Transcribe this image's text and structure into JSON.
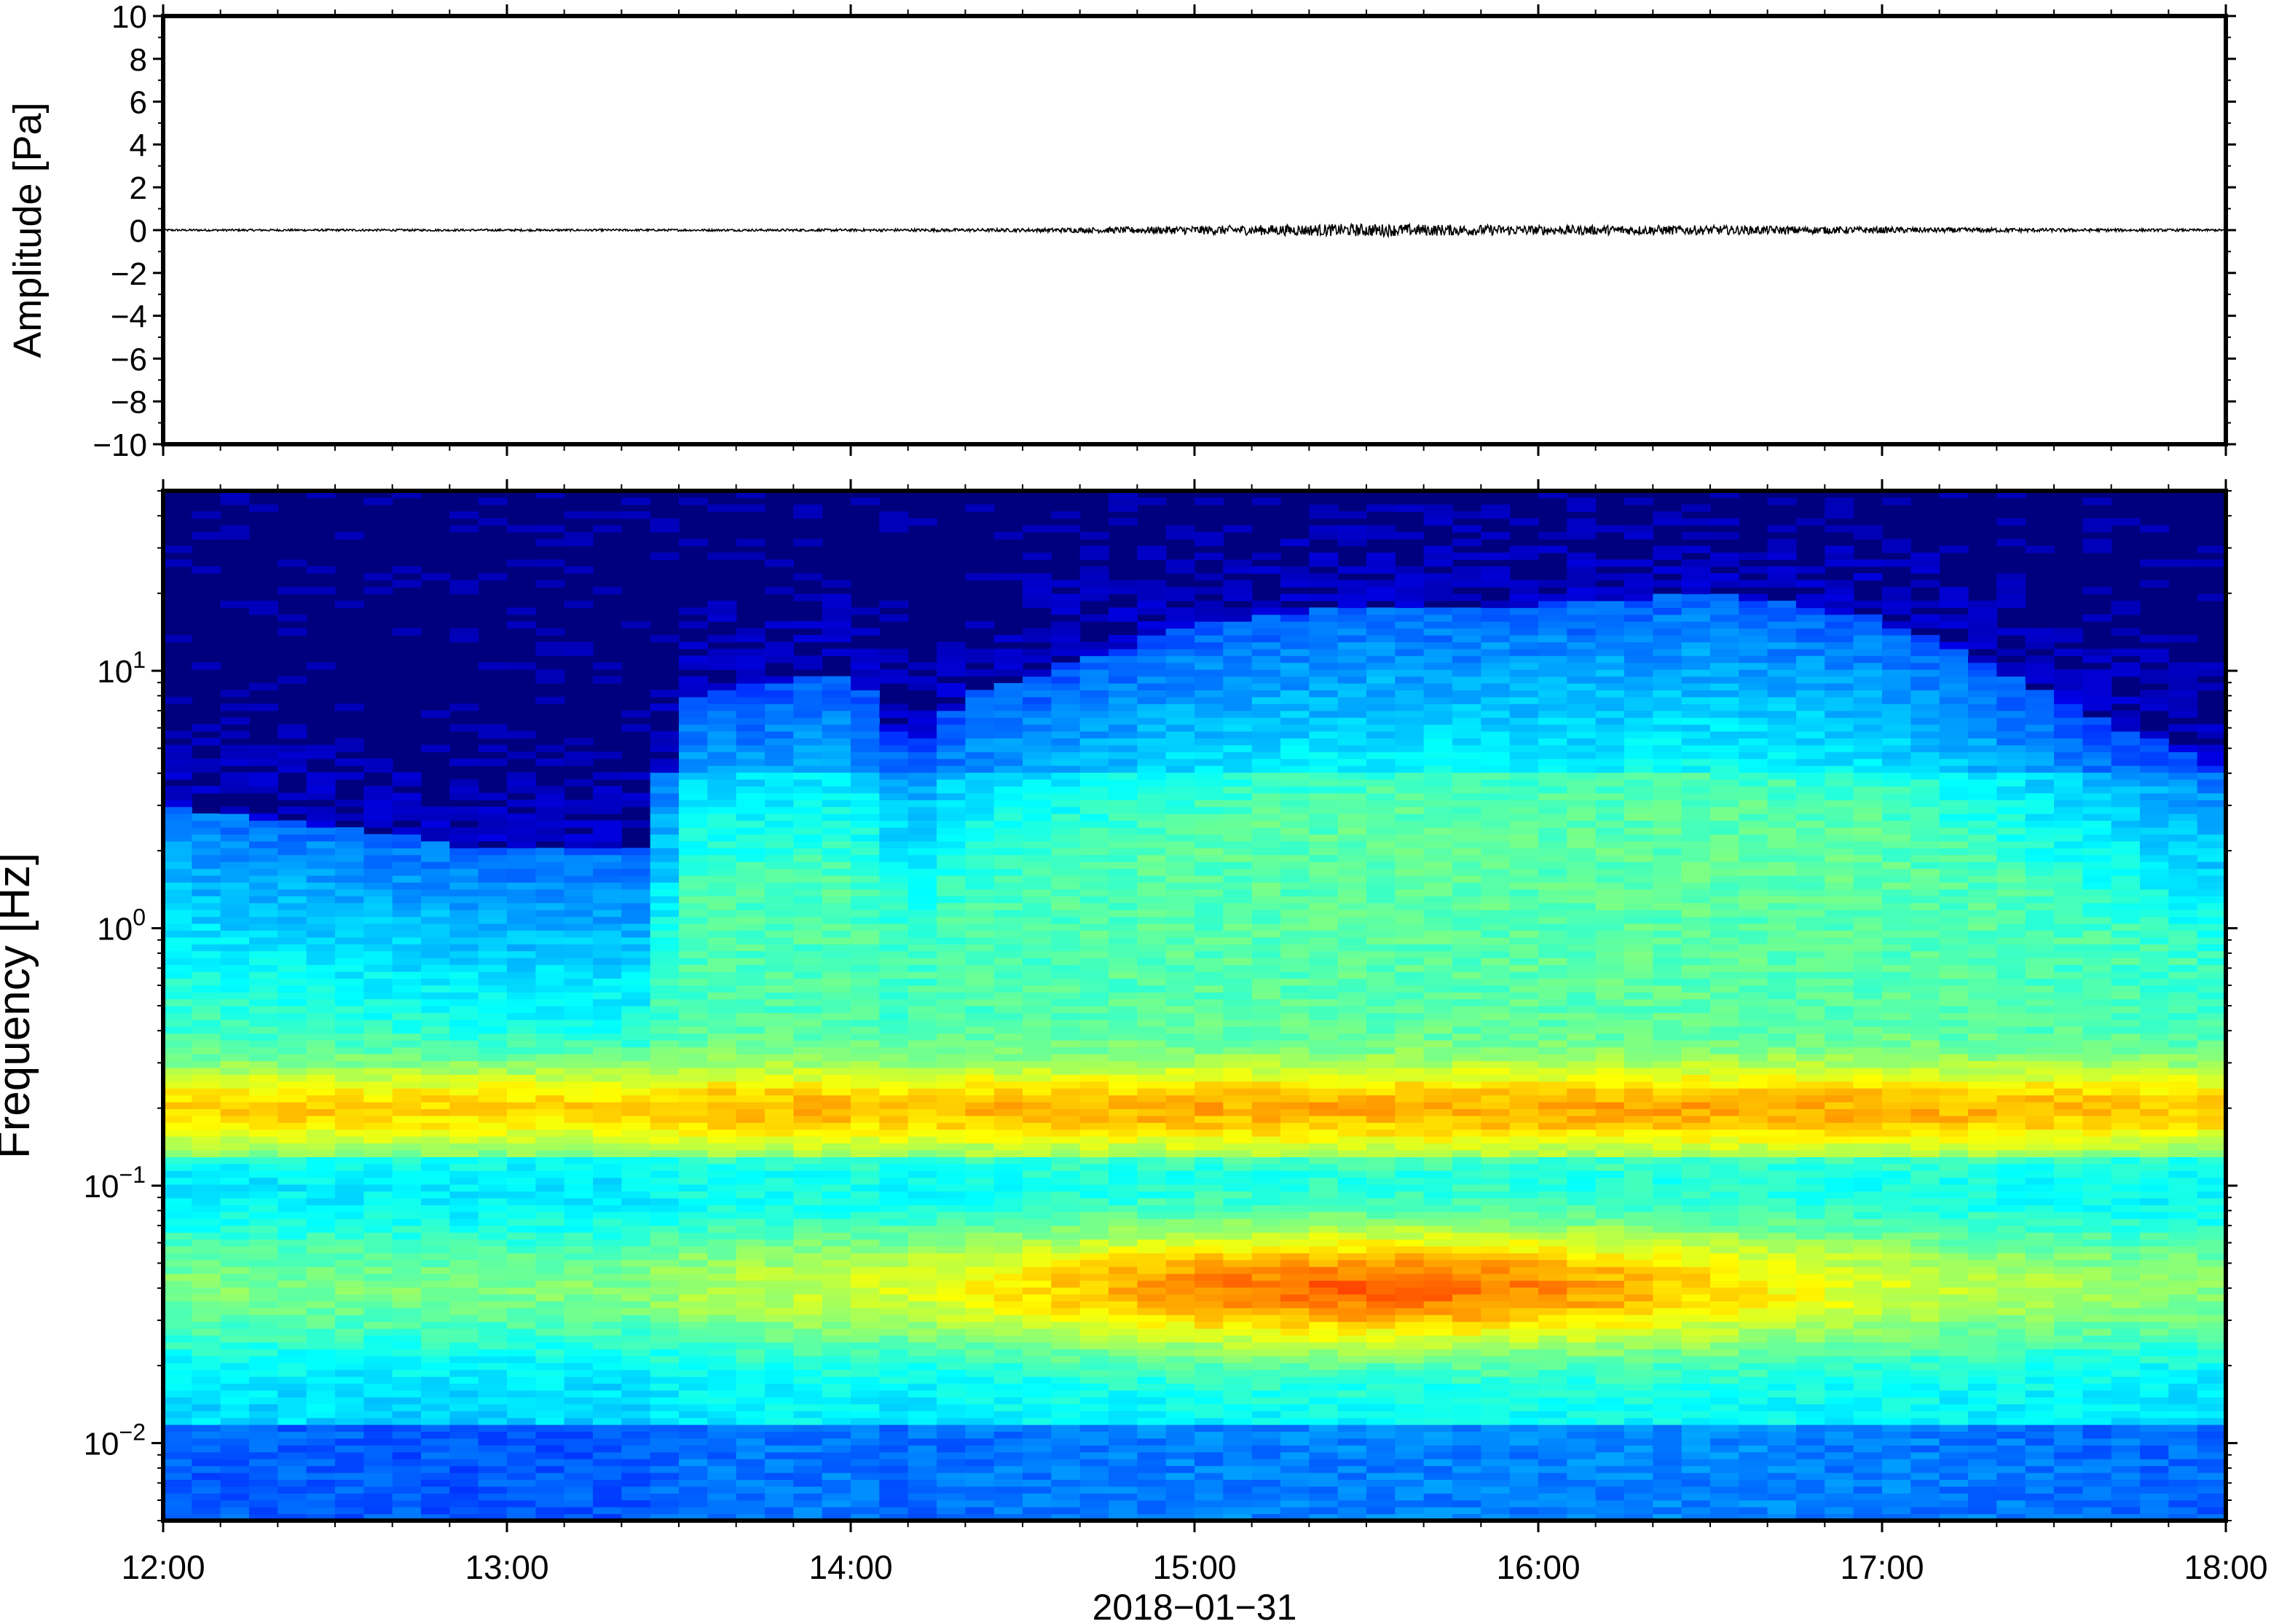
{
  "chart_data": [
    {
      "type": "line",
      "panel": "waveform",
      "ylabel": "Amplitude [Pa]",
      "ylim": [
        -10,
        10
      ],
      "y_ticks": [
        {
          "value": 10,
          "label": "10"
        },
        {
          "value": 8,
          "label": "8"
        },
        {
          "value": 6,
          "label": "6"
        },
        {
          "value": 4,
          "label": "4"
        },
        {
          "value": 2,
          "label": "2"
        },
        {
          "value": 0,
          "label": "0"
        },
        {
          "value": -2,
          "label": "−2"
        },
        {
          "value": -4,
          "label": "−4"
        },
        {
          "value": -6,
          "label": "−6"
        },
        {
          "value": -8,
          "label": "−8"
        },
        {
          "value": -10,
          "label": "−10"
        }
      ],
      "xlim": [
        "12:00",
        "18:00"
      ],
      "series": [
        {
          "x": [
            "12:00",
            "12:30",
            "13:00",
            "13:30",
            "14:00",
            "14:30",
            "15:00",
            "15:30",
            "16:00",
            "16:30",
            "17:00",
            "17:30",
            "18:00"
          ],
          "envelope": [
            0.05,
            0.05,
            0.05,
            0.05,
            0.06,
            0.08,
            0.2,
            0.3,
            0.22,
            0.22,
            0.15,
            0.08,
            0.05
          ],
          "color": "#000000"
        }
      ],
      "grid": false
    },
    {
      "type": "heatmap",
      "panel": "spectrogram",
      "ylabel": "Frequency [Hz]",
      "y_scale": "log",
      "ylim_hz": [
        0.005,
        50
      ],
      "y_ticks": [
        {
          "base": "10",
          "exp": "1",
          "value": 10
        },
        {
          "base": "10",
          "exp": "0",
          "value": 1
        },
        {
          "base": "10",
          "exp": "−1",
          "value": 0.1
        },
        {
          "base": "10",
          "exp": "−2",
          "value": 0.01
        }
      ],
      "x_tick_labels": [
        "12:00",
        "13:00",
        "14:00",
        "15:00",
        "16:00",
        "17:00",
        "18:00"
      ],
      "x_date_label": "2018−01−31",
      "colormap": [
        "#00007f",
        "#0000ff",
        "#0080ff",
        "#00ffff",
        "#80ff80",
        "#ffff00",
        "#ff8000",
        "#ff0000"
      ],
      "noise_edge_hz": [
        [
          "12:00",
          3
        ],
        [
          "13:00",
          2
        ],
        [
          "13:25",
          2
        ],
        [
          "13:30",
          8
        ],
        [
          "14:00",
          10
        ],
        [
          "14:10",
          5
        ],
        [
          "14:20",
          8
        ],
        [
          "14:45",
          12
        ],
        [
          "15:00",
          15
        ],
        [
          "15:30",
          18
        ],
        [
          "16:00",
          18
        ],
        [
          "16:30",
          20
        ],
        [
          "17:00",
          16
        ],
        [
          "17:20",
          10
        ],
        [
          "18:00",
          4
        ]
      ],
      "microbarom_peak_hz": 0.04,
      "grid": false
    }
  ]
}
